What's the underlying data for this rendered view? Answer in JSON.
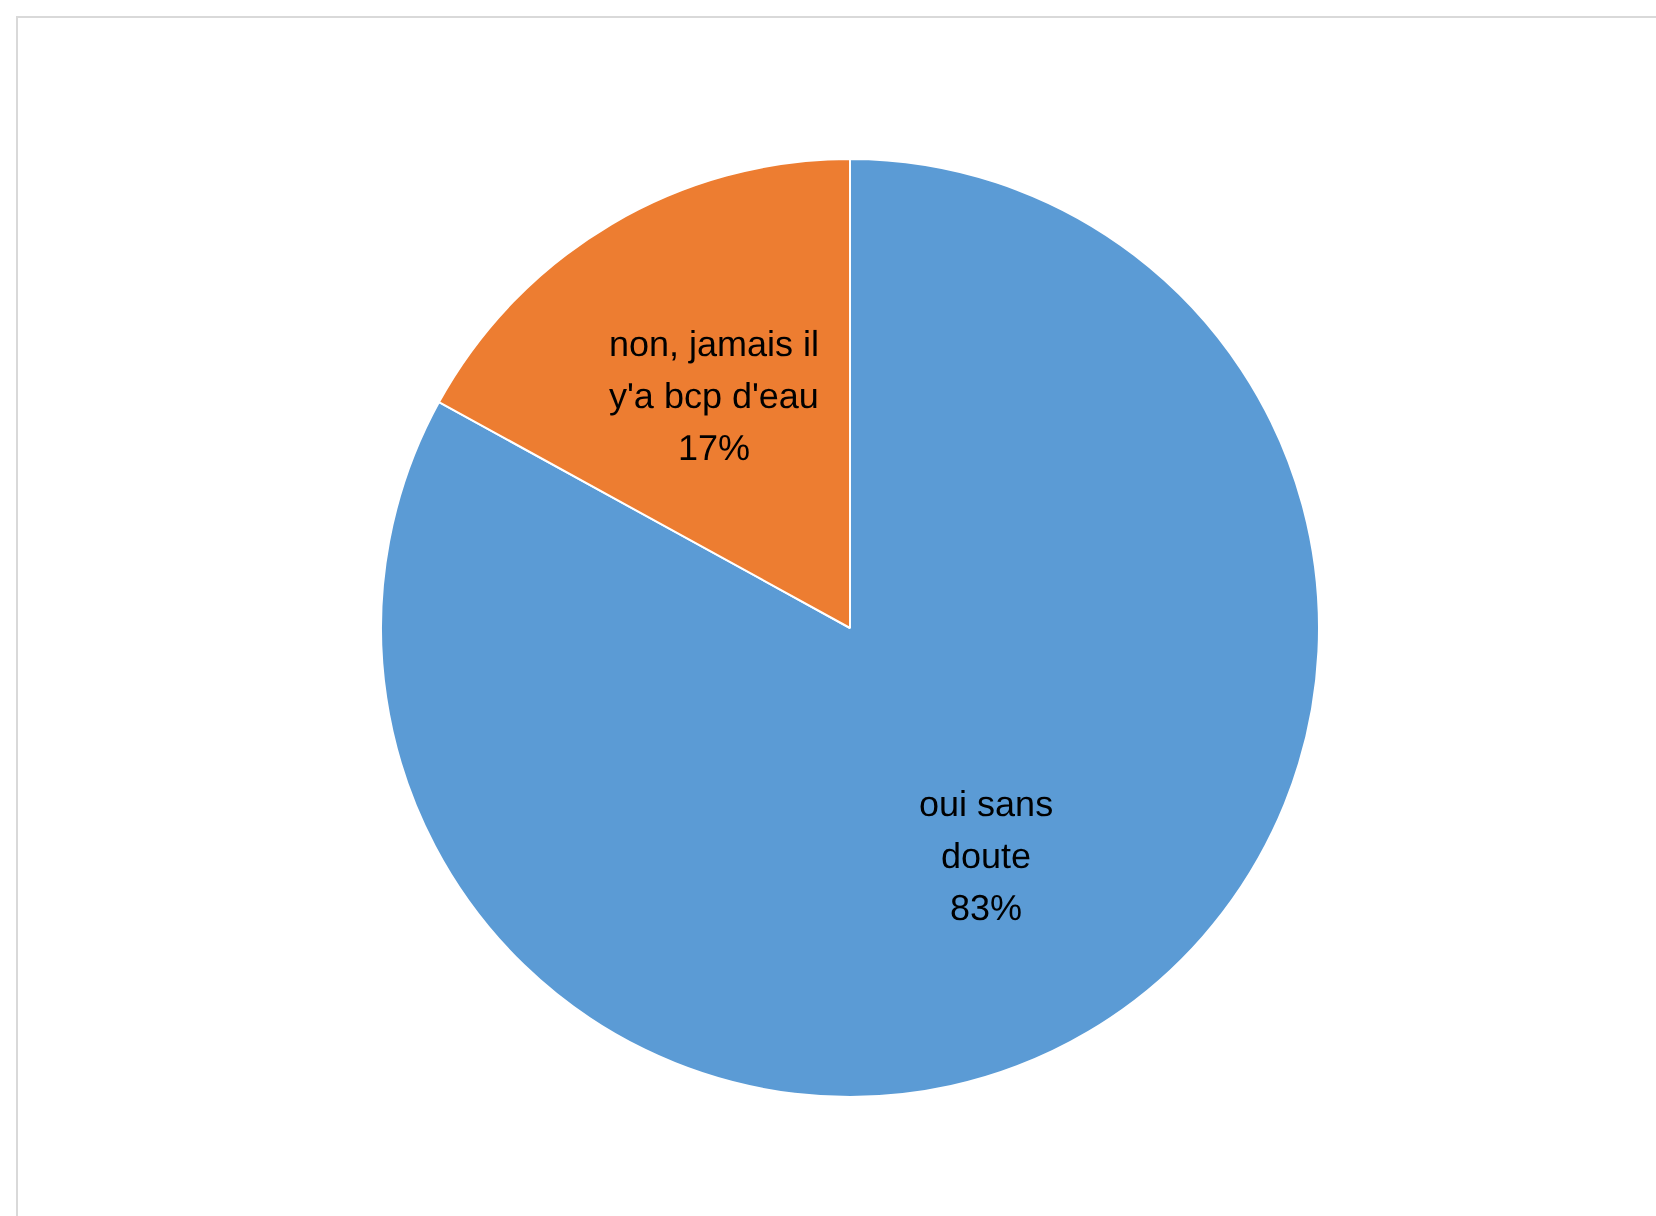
{
  "chart_data": {
    "type": "pie",
    "categories": [
      "oui sans doute",
      "non, jamais il y'a bcp d'eau"
    ],
    "values": [
      83,
      17
    ],
    "colors": [
      "#5b9bd5",
      "#ed7d31"
    ],
    "value_labels": [
      "83%",
      "17%"
    ],
    "legend": false
  }
}
